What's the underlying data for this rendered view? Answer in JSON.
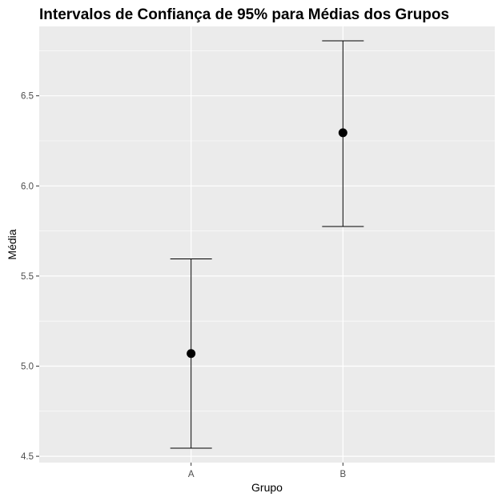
{
  "chart_data": {
    "type": "errorbar",
    "title": "Intervalos de Confiança de 95% para Médias dos Grupos",
    "xlabel": "Grupo",
    "ylabel": "Média",
    "categories": [
      "A",
      "B"
    ],
    "points": [
      {
        "category": "A",
        "mean": 5.07,
        "lower": 4.545,
        "upper": 5.595
      },
      {
        "category": "B",
        "mean": 6.295,
        "lower": 5.775,
        "upper": 6.805
      }
    ],
    "ylim": [
      4.465,
      6.885
    ],
    "y_ticks": [
      4.5,
      5.0,
      5.5,
      6.0,
      6.5
    ],
    "y_tick_labels": [
      "4.5",
      "5.0",
      "5.5",
      "6.0",
      "6.5"
    ],
    "grid": true,
    "legend": "none",
    "colors": {
      "panel_background": "#ebebeb",
      "grid": "#ffffff",
      "marks": "#000000",
      "tick_text": "#4d4d4d"
    }
  }
}
